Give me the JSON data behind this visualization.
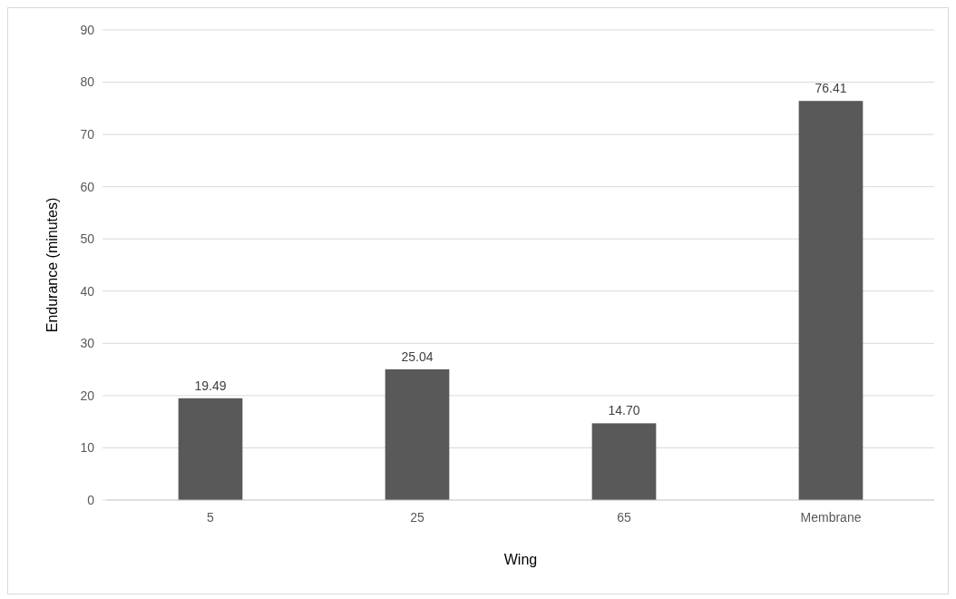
{
  "chart_data": {
    "type": "bar",
    "xlabel": "Wing",
    "ylabel": "Endurance (minutes)",
    "categories": [
      "5",
      "25",
      "65",
      "Membrane"
    ],
    "values": [
      19.49,
      25.04,
      14.7,
      76.41
    ],
    "value_labels": [
      "19.49",
      "25.04",
      "14.70",
      "76.41"
    ],
    "color": "#595959",
    "ylim": [
      0,
      90
    ],
    "yticks": [
      0,
      10,
      20,
      30,
      40,
      50,
      60,
      70,
      80,
      90
    ],
    "grid": "y"
  }
}
